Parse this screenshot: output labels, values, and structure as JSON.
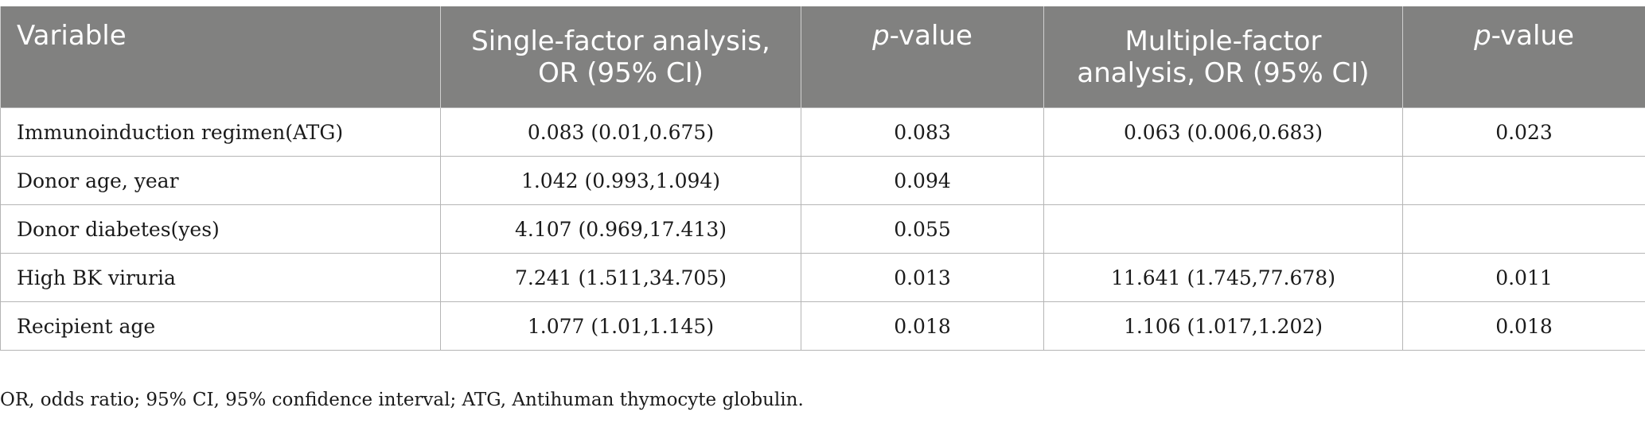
{
  "table": {
    "headers": {
      "variable": "Variable",
      "single_line1": "Single-factor analysis,",
      "single_line2": "OR (95% CI)",
      "p1_italic": "p",
      "p1_rest": "-value",
      "multi_line1": "Multiple-factor",
      "multi_line2": "analysis, OR (95% CI)",
      "p2_italic": "p",
      "p2_rest": "-value"
    },
    "rows": [
      {
        "variable": "Immunoinduction regimen(ATG)",
        "single": "0.083 (0.01,0.675)",
        "p_single": "0.083",
        "multi": "0.063 (0.006,0.683)",
        "p_multi": "0.023"
      },
      {
        "variable": "Donor age, year",
        "single": "1.042 (0.993,1.094)",
        "p_single": "0.094",
        "multi": "",
        "p_multi": ""
      },
      {
        "variable": "Donor diabetes(yes)",
        "single": "4.107 (0.969,17.413)",
        "p_single": "0.055",
        "multi": "",
        "p_multi": ""
      },
      {
        "variable": "High BK viruria",
        "single": "7.241 (1.511,34.705)",
        "p_single": "0.013",
        "multi": "11.641 (1.745,77.678)",
        "p_multi": "0.011"
      },
      {
        "variable": "Recipient age",
        "single": "1.077 (1.01,1.145)",
        "p_single": "0.018",
        "multi": "1.106 (1.017,1.202)",
        "p_multi": "0.018"
      }
    ]
  },
  "footnote": "OR, odds ratio; 95% CI, 95% confidence interval; ATG, Antihuman thymocyte globulin.",
  "colors": {
    "header_bg": "#818180",
    "header_text": "#ffffff",
    "border": "#b5b5b5"
  }
}
